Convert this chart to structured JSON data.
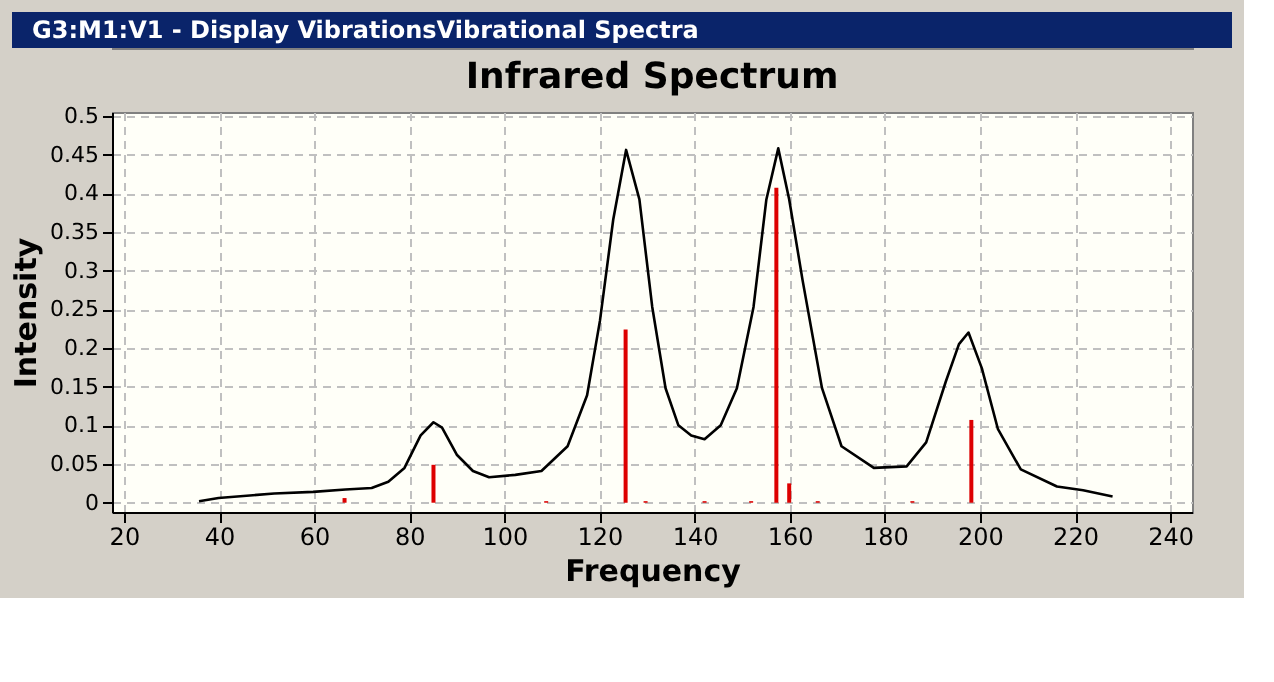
{
  "chart_data": {
    "type": "line",
    "title": "Infrared Spectrum",
    "xlabel": "Frequency",
    "ylabel": "Intensity",
    "annotations": [
      "G3:M1:V1 - Display VibrationsVibrational Spectra"
    ],
    "xlim": [
      17.5,
      244.6
    ],
    "ylim": [
      -0.012,
      0.505
    ],
    "xticks": [
      20,
      40,
      60,
      80,
      100,
      120,
      140,
      160,
      180,
      200,
      220,
      240
    ],
    "yticks": [
      0,
      0.05,
      0.1,
      0.15,
      0.2,
      0.25,
      0.3,
      0.35,
      0.4,
      0.45,
      0.5
    ],
    "grid": true,
    "line_style": "solid",
    "marker": "none",
    "series": [
      {
        "color": "#000000",
        "x": [
          35.8,
          39.9,
          51.6,
          59.8,
          66.6,
          72.1,
          75.6,
          79.0,
          82.4,
          85.1,
          86.9,
          90.0,
          93.4,
          96.8,
          102.3,
          107.8,
          113.3,
          117.4,
          120.1,
          122.9,
          125.6,
          128.4,
          131.1,
          133.9,
          136.6,
          139.3,
          142.1,
          145.5,
          148.9,
          152.4,
          155.1,
          157.6,
          159.9,
          162.7,
          166.8,
          170.9,
          177.7,
          184.6,
          188.7,
          192.8,
          195.6,
          197.6,
          200.4,
          203.8,
          208.6,
          216.2,
          221.7,
          227.9
        ],
        "values": [
          0.002,
          0.006,
          0.012,
          0.014,
          0.017,
          0.019,
          0.027,
          0.045,
          0.087,
          0.104,
          0.097,
          0.062,
          0.041,
          0.033,
          0.036,
          0.041,
          0.073,
          0.139,
          0.235,
          0.366,
          0.456,
          0.392,
          0.253,
          0.148,
          0.1,
          0.087,
          0.082,
          0.1,
          0.148,
          0.253,
          0.392,
          0.458,
          0.392,
          0.288,
          0.148,
          0.073,
          0.045,
          0.047,
          0.078,
          0.156,
          0.205,
          0.22,
          0.174,
          0.095,
          0.043,
          0.021,
          0.016,
          0.008
        ]
      },
      {
        "type": "bar",
        "color": "#dd0000",
        "x": [
          66.4,
          85.1,
          108.8,
          125.5,
          129.7,
          142.1,
          151.9,
          157.2,
          159.9,
          165.9,
          185.8,
          198.2
        ],
        "values": [
          0.006,
          0.049,
          0.002,
          0.224,
          0.002,
          0.002,
          0.002,
          0.407,
          0.025,
          0.002,
          0.002,
          0.107
        ]
      }
    ]
  }
}
